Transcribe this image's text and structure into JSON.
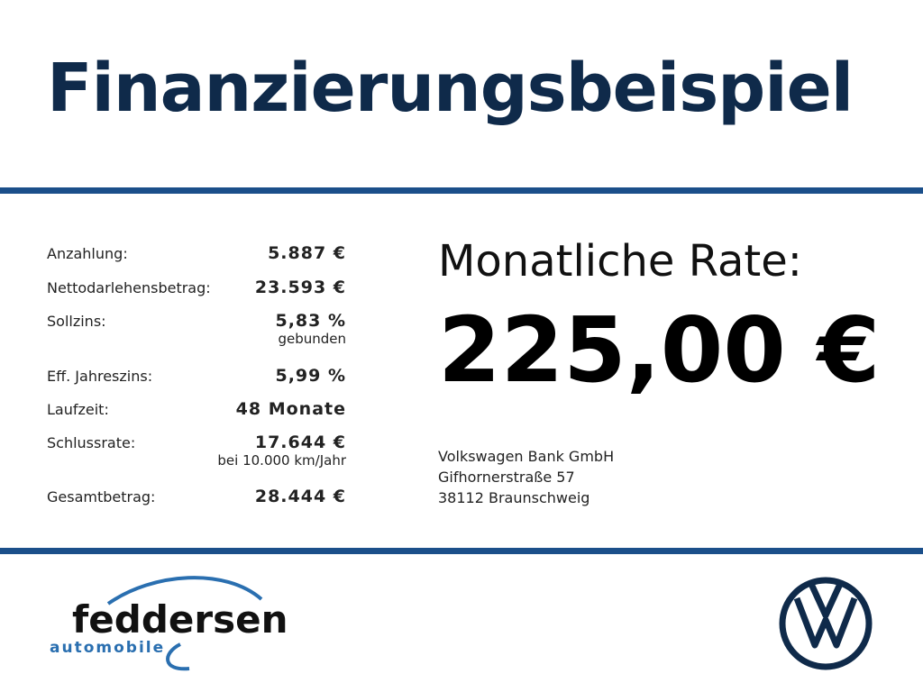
{
  "header": {
    "title": "Finanzierungsbeispiel"
  },
  "table": {
    "rows": [
      [
        "Anzahlung:",
        "5.887 €",
        null
      ],
      [
        "Nettodarlehensbetrag:",
        "23.593 €",
        null
      ],
      [
        "Sollzins:",
        "5,83 %",
        "gebunden"
      ],
      [
        "Eff. Jahreszins:",
        "5,99 %",
        null
      ],
      [
        "Laufzeit:",
        "48 Monate",
        null
      ],
      [
        "Schlussrate:",
        "17.644 €",
        "bei 10.000 km/Jahr"
      ],
      [
        "Gesamtbetrag:",
        "28.444 €",
        null
      ]
    ]
  },
  "rate": {
    "label": "Monatliche Rate:",
    "value": "225,00 €"
  },
  "lender": {
    "lines": [
      "Volkswagen Bank GmbH",
      "Gifhornerstraße 57",
      "38112 Braunschweig"
    ]
  },
  "dealer": {
    "name": "feddersen",
    "sub": "automobile"
  }
}
